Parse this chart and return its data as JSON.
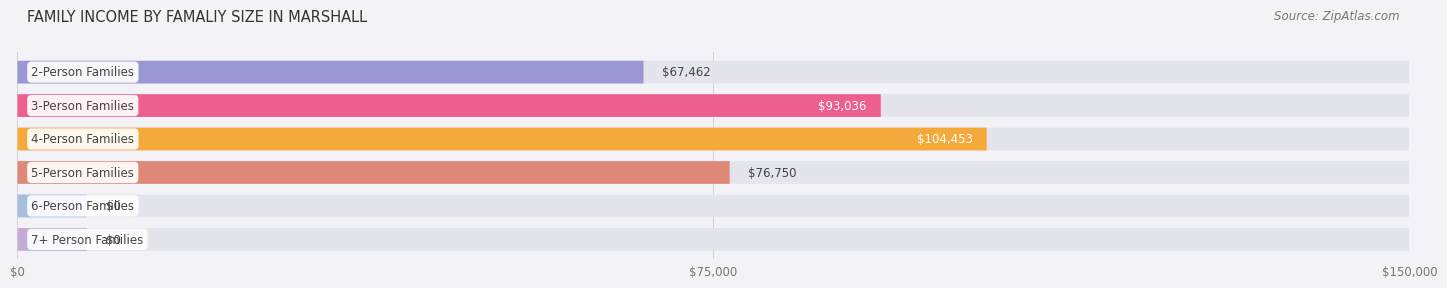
{
  "title": "FAMILY INCOME BY FAMALIY SIZE IN MARSHALL",
  "source": "Source: ZipAtlas.com",
  "categories": [
    "2-Person Families",
    "3-Person Families",
    "4-Person Families",
    "5-Person Families",
    "6-Person Families",
    "7+ Person Families"
  ],
  "values": [
    67462,
    93036,
    104453,
    76750,
    0,
    0
  ],
  "display_values": [
    "$67,462",
    "$93,036",
    "$104,453",
    "$76,750",
    "$0",
    "$0"
  ],
  "bar_colors": [
    "#9b96d4",
    "#ed5f8e",
    "#f5a93a",
    "#e08878",
    "#a8bfdc",
    "#c0acd6"
  ],
  "value_inside": [
    false,
    true,
    true,
    false,
    false,
    false
  ],
  "xlim": [
    0,
    150000
  ],
  "xticks": [
    0,
    75000,
    150000
  ],
  "xtick_labels": [
    "$0",
    "$75,000",
    "$150,000"
  ],
  "background_color": "#f2f2f7",
  "bar_bg_color": "#e4e4ed",
  "title_fontsize": 10.5,
  "source_fontsize": 8.5,
  "bar_height": 0.68,
  "value_fontsize": 8.5,
  "category_fontsize": 8.5,
  "stub_value": 7500
}
